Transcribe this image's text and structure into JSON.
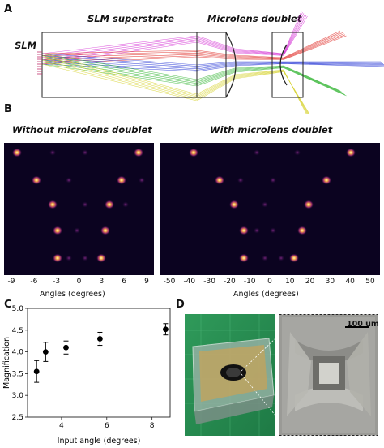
{
  "panels": {
    "a": {
      "letter": "A",
      "slm": "SLM",
      "superstrate": "SLM superstrate",
      "doublet": "Microlens doublet"
    },
    "b": {
      "letter": "B",
      "left_title": "Without microlens doublet",
      "right_title": "With microlens doublet",
      "left_ticks": [
        "-9",
        "-6",
        "-3",
        "0",
        "3",
        "6",
        "9"
      ],
      "right_ticks": [
        "-50",
        "-40",
        "-30",
        "-20",
        "-10",
        "0",
        "10",
        "20",
        "30",
        "40",
        "50"
      ],
      "xlabel": "Angles (degrees)"
    },
    "c": {
      "letter": "C"
    },
    "d": {
      "letter": "D",
      "scale_label": "100 um"
    }
  },
  "colors": {
    "heatmap_bg": "#0b0320",
    "spot": "#f4a340",
    "ray_magenta": "#d63ad6",
    "ray_red": "#e0302a",
    "ray_blue": "#2b3bd6",
    "ray_green": "#35b535",
    "ray_yellow": "#d8d43a"
  },
  "chart_data": {
    "type": "scatter",
    "xlabel": "Input angle (degrees)",
    "ylabel": "Magnification",
    "x_ticks": [
      4,
      6,
      8
    ],
    "y_ticks": [
      2.5,
      3.0,
      3.5,
      4.0,
      4.5,
      5.0
    ],
    "xlim": [
      2.5,
      8.8
    ],
    "ylim": [
      2.5,
      5.0
    ],
    "x": [
      2.9,
      3.3,
      4.2,
      5.7,
      8.6
    ],
    "y": [
      3.55,
      4.0,
      4.1,
      4.3,
      4.52
    ],
    "yerr": [
      0.25,
      0.22,
      0.15,
      0.15,
      0.13
    ],
    "grid": false
  }
}
